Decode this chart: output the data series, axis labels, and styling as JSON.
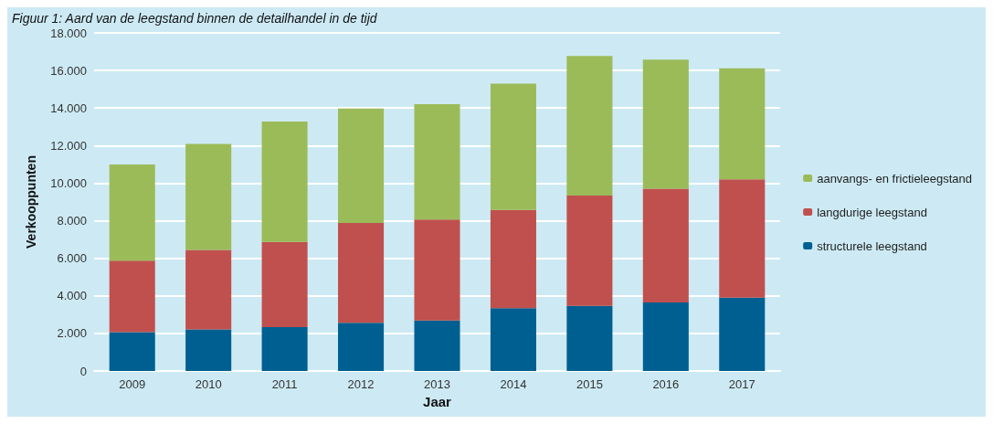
{
  "chart_data": {
    "type": "bar",
    "title": "Figuur 1: Aard van de leegstand binnen de detailhandel in de tijd",
    "xlabel": "Jaar",
    "ylabel": "Verkooppunten",
    "categories": [
      "2009",
      "2010",
      "2011",
      "2012",
      "2013",
      "2014",
      "2015",
      "2016",
      "2017"
    ],
    "stacked": true,
    "series": [
      {
        "name": "structurele leegstand",
        "color": "#005f91",
        "values": [
          2070,
          2210,
          2340,
          2570,
          2690,
          3340,
          3470,
          3650,
          3910
        ]
      },
      {
        "name": "langdurige leegstand",
        "color": "#c0504d",
        "values": [
          3810,
          4230,
          4530,
          5310,
          5370,
          5230,
          5870,
          6050,
          6300
        ]
      },
      {
        "name": "aanvangs- en frictieleegstand",
        "color": "#9bbb59",
        "values": [
          5120,
          5650,
          6410,
          6090,
          6140,
          6730,
          7430,
          6880,
          5910
        ]
      }
    ],
    "ylim": [
      0,
      18000
    ],
    "yticks": [
      {
        "value": 0,
        "label": "0"
      },
      {
        "value": 2000,
        "label": "2.000"
      },
      {
        "value": 4000,
        "label": "4.000"
      },
      {
        "value": 6000,
        "label": "6.000"
      },
      {
        "value": 8000,
        "label": "8.000"
      },
      {
        "value": 10000,
        "label": "10.000"
      },
      {
        "value": 12000,
        "label": "12.000"
      },
      {
        "value": 14000,
        "label": "14.000"
      },
      {
        "value": 16000,
        "label": "16.000"
      },
      {
        "value": 18000,
        "label": "18.000"
      }
    ],
    "grid": "y",
    "legend": "right"
  }
}
